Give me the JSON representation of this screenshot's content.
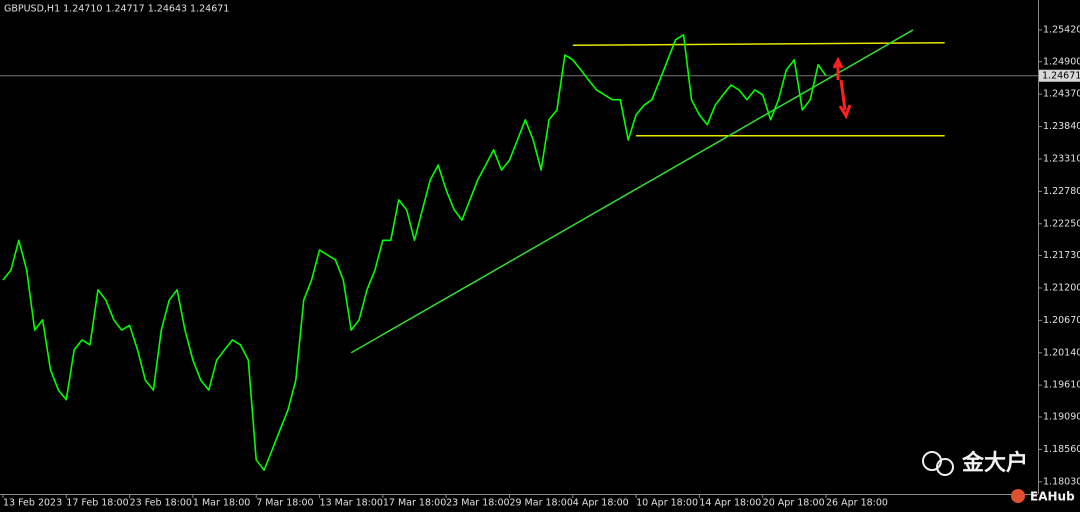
{
  "chart_data": {
    "type": "line",
    "title": "GBPUSD,H1  1.24710 1.24717 1.24643 1.24671",
    "color": "#00ff00",
    "categories": [
      "13 Feb 2023",
      null,
      null,
      null,
      null,
      null,
      null,
      null,
      "17 Feb 18:00",
      null,
      null,
      null,
      null,
      null,
      null,
      null,
      "23 Feb 18:00",
      null,
      null,
      null,
      null,
      null,
      null,
      null,
      "1 Mar 18:00",
      null,
      null,
      null,
      null,
      null,
      null,
      null,
      "7 Mar 18:00",
      null,
      null,
      null,
      null,
      null,
      null,
      null,
      "13 Mar 18:00",
      null,
      null,
      null,
      null,
      null,
      null,
      null,
      "17 Mar 18:00",
      null,
      null,
      null,
      null,
      null,
      null,
      null,
      "23 Mar 18:00",
      null,
      null,
      null,
      null,
      null,
      null,
      null,
      "29 Mar 18:00",
      null,
      null,
      null,
      null,
      null,
      null,
      null,
      "4 Apr 18:00",
      null,
      null,
      null,
      null,
      null,
      null,
      null,
      "10 Apr 18:00",
      null,
      null,
      null,
      null,
      null,
      null,
      null,
      "14 Apr 18:00",
      null,
      null,
      null,
      null,
      null,
      null,
      null,
      "20 Apr 18:00",
      null,
      null,
      null,
      null,
      null,
      null,
      null,
      "26 Apr 18:00"
    ],
    "values": [
      1.2133,
      1.2149,
      1.2198,
      1.2149,
      1.2051,
      1.2068,
      1.1986,
      1.1953,
      1.1937,
      1.2019,
      1.2035,
      1.2027,
      1.2117,
      1.21,
      1.2068,
      1.2051,
      1.2059,
      1.2019,
      1.1969,
      1.1953,
      1.2051,
      1.21,
      1.2117,
      1.2051,
      1.2002,
      1.1969,
      1.1953,
      1.2002,
      1.2019,
      1.2035,
      1.2027,
      1.2002,
      1.1839,
      1.1822,
      1.1855,
      1.1888,
      1.192,
      1.1969,
      1.21,
      1.2133,
      1.2182,
      1.2174,
      1.2166,
      1.2133,
      1.2051,
      1.2068,
      1.2117,
      1.2149,
      1.2198,
      1.2198,
      1.2264,
      1.2248,
      1.2198,
      1.2248,
      1.2297,
      1.2321,
      1.228,
      1.2248,
      1.2231,
      1.2264,
      1.2297,
      1.2321,
      1.2346,
      1.2313,
      1.2329,
      1.2362,
      1.2395,
      1.2362,
      1.2313,
      1.2395,
      1.2411,
      1.2501,
      1.2493,
      1.2477,
      1.246,
      1.2444,
      1.2436,
      1.2428,
      1.2428,
      1.2362,
      1.2403,
      1.2419,
      1.2428,
      1.246,
      1.2493,
      1.2526,
      1.2534,
      1.2428,
      1.2403,
      1.2387,
      1.2419,
      1.2436,
      1.2452,
      1.2444,
      1.2428,
      1.2444,
      1.2436,
      1.2395,
      1.2428,
      1.2477,
      1.2493,
      1.2411,
      1.2428,
      1.2485,
      1.24671
    ],
    "ylim": [
      1.1783,
      1.2591
    ],
    "yticks": [
      {
        "value": 1.1803,
        "label": "1.18030"
      },
      {
        "value": 1.1856,
        "label": "1.18560"
      },
      {
        "value": 1.1909,
        "label": "1.19090"
      },
      {
        "value": 1.1961,
        "label": "1.19610"
      },
      {
        "value": 1.2014,
        "label": "1.20140"
      },
      {
        "value": 1.2067,
        "label": "1.20670"
      },
      {
        "value": 1.212,
        "label": "1.21200"
      },
      {
        "value": 1.2173,
        "label": "1.21730"
      },
      {
        "value": 1.2225,
        "label": "1.22250"
      },
      {
        "value": 1.2278,
        "label": "1.22780"
      },
      {
        "value": 1.2331,
        "label": "1.23310"
      },
      {
        "value": 1.2384,
        "label": "1.23840"
      },
      {
        "value": 1.2437,
        "label": "1.24370"
      },
      {
        "value": 1.249,
        "label": "1.24900"
      },
      {
        "value": 1.2542,
        "label": "1.25420"
      }
    ],
    "last_price": {
      "value": 1.24671,
      "label": "1.24671"
    },
    "grid": false,
    "trend_lines": [
      {
        "color": "#e6e600",
        "start": [
          72,
          1.2517
        ],
        "end": [
          119,
          1.2521
        ]
      },
      {
        "color": "#e6e600",
        "start": [
          80,
          1.2369
        ],
        "end": [
          119,
          1.2369
        ]
      },
      {
        "color": "#33dd33",
        "start": [
          44,
          1.2014
        ],
        "end": [
          115,
          1.2542
        ]
      }
    ],
    "watermarks": [
      "金大户",
      "EAHub"
    ]
  }
}
